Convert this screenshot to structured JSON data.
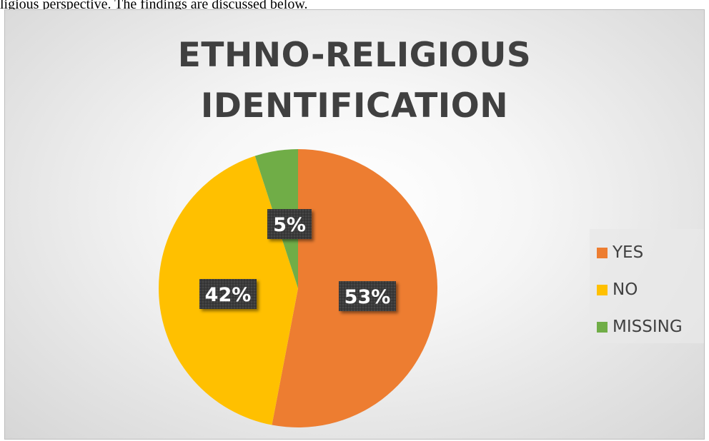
{
  "document": {
    "text": "ligious perspective. The findings are discussed below."
  },
  "chart_data": {
    "type": "pie",
    "title_lines": [
      "ETHNO-RELIGIOUS",
      "IDENTIFICATION"
    ],
    "categories": [
      "YES",
      "NO",
      "MISSING"
    ],
    "values": [
      53,
      42,
      5
    ],
    "labels": [
      "53%",
      "42%",
      "5%"
    ],
    "colors": [
      "#ED7D31",
      "#FFC000",
      "#70AD47"
    ],
    "start_angle": "12 o'clock, clockwise",
    "legend_position": "right"
  }
}
